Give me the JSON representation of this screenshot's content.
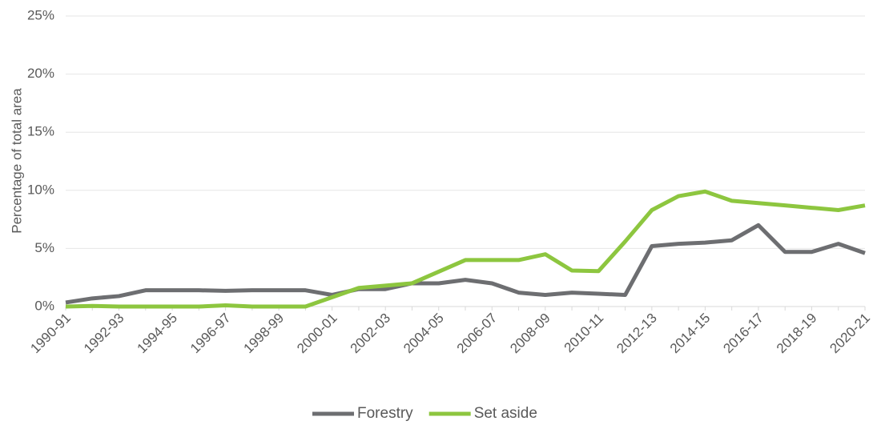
{
  "chart_data": {
    "type": "line",
    "y_label": "Percentage of total area",
    "categories": [
      "1990-91",
      null,
      "1992-93",
      null,
      "1994-95",
      null,
      "1996-97",
      null,
      "1998-99",
      null,
      "2000-01",
      null,
      "2002-03",
      null,
      "2004-05",
      null,
      "2006-07",
      null,
      "2008-09",
      null,
      "2010-11",
      null,
      "2012-13",
      null,
      "2014-15",
      null,
      "2016-17",
      null,
      "2018-19",
      null,
      "2020-21"
    ],
    "series": [
      {
        "name": "Forestry",
        "color": "#6d6e71",
        "values": [
          0.35,
          0.7,
          0.9,
          1.4,
          1.4,
          1.4,
          1.35,
          1.4,
          1.4,
          1.4,
          1.0,
          1.5,
          1.5,
          2.0,
          2.0,
          2.3,
          2.0,
          1.2,
          1.0,
          1.2,
          1.1,
          1.0,
          5.2,
          5.4,
          5.5,
          5.7,
          7.0,
          4.7,
          4.7,
          5.4,
          4.6
        ]
      },
      {
        "name": "Set aside",
        "color": "#8dc63f",
        "values": [
          0,
          0.05,
          0,
          0,
          0,
          0,
          0.1,
          0,
          0,
          0,
          0.8,
          1.6,
          1.8,
          2.0,
          3.0,
          4.0,
          4.0,
          4.0,
          4.5,
          3.1,
          3.05,
          5.6,
          8.3,
          9.5,
          9.9,
          9.1,
          8.9,
          8.7,
          8.5,
          8.3,
          8.7
        ]
      }
    ],
    "ylim": [
      0,
      25
    ],
    "yticks": [
      {
        "value": 0,
        "label": "0%"
      },
      {
        "value": 5,
        "label": "5%"
      },
      {
        "value": 10,
        "label": "10%"
      },
      {
        "value": 15,
        "label": "15%"
      },
      {
        "value": 20,
        "label": "20%"
      },
      {
        "value": 25,
        "label": "25%"
      }
    ],
    "grid": true,
    "legend": "bottom"
  }
}
